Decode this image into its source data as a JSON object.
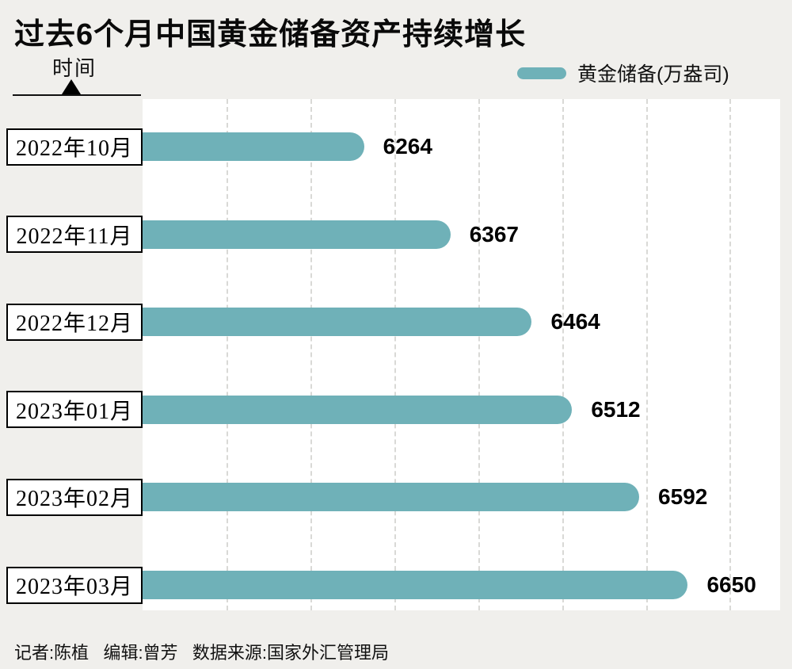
{
  "title": "过去6个月中国黄金储备资产持续增长",
  "axis_label": "时间",
  "legend": {
    "label": "黄金储备(万盎司)",
    "swatch_color": "#6FB1B8"
  },
  "footer": "记者:陈植   编辑:曾芳   数据来源:国家外汇管理局",
  "colors": {
    "background": "#F0EFEC",
    "plot_background": "#FFFFFF",
    "bar": "#6FB1B8",
    "gridline": "#D9D9D6",
    "text": "#000000"
  },
  "chart_data": {
    "type": "bar",
    "orientation": "horizontal",
    "title": "过去6个月中国黄金储备资产持续增长",
    "series_name": "黄金储备(万盎司)",
    "categories": [
      "2022年10月",
      "2022年11月",
      "2022年12月",
      "2023年01月",
      "2023年02月",
      "2023年03月"
    ],
    "values": [
      6264,
      6367,
      6464,
      6512,
      6592,
      6650
    ],
    "ylabel": "时间",
    "xlabel": "",
    "xlim": [
      6000,
      6760
    ],
    "grid_step": 100,
    "grid": true,
    "legend_position": "top-right"
  }
}
